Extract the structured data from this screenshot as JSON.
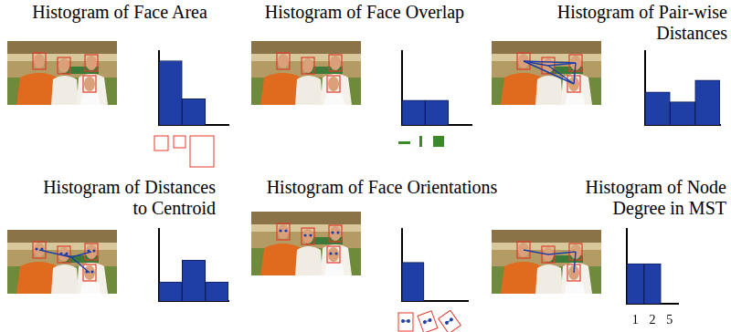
{
  "chart_data": [
    {
      "type": "bar",
      "title": [
        "Histogram of Face Area"
      ],
      "categories": [
        null,
        null,
        null
      ],
      "values": [
        86,
        35,
        0
      ],
      "color": "#1f3fa6",
      "ylim": [
        0,
        100
      ],
      "tick_labels": false,
      "grid": false
    },
    {
      "type": "bar",
      "title": [
        "Histogram of Face Overlap"
      ],
      "categories": [
        null,
        null,
        null
      ],
      "values": [
        33,
        33,
        0
      ],
      "color": "#1f3fa6",
      "ylim": [
        0,
        100
      ],
      "tick_labels": false,
      "grid": false
    },
    {
      "type": "bar",
      "title": [
        "Histogram of Pair-wise",
        "Distances"
      ],
      "categories": [
        null,
        null,
        null
      ],
      "values": [
        44,
        31,
        60
      ],
      "color": "#1f3fa6",
      "ylim": [
        0,
        100
      ],
      "tick_labels": false,
      "grid": false
    },
    {
      "type": "bar",
      "title": [
        "Histogram of Distances",
        "to Centroid"
      ],
      "categories": [
        null,
        null,
        null
      ],
      "values": [
        26,
        56,
        26
      ],
      "color": "#1f3fa6",
      "ylim": [
        0,
        100
      ],
      "tick_labels": false,
      "grid": false
    },
    {
      "type": "bar",
      "title": [
        "Histogram of Face Orientations"
      ],
      "categories": [
        null,
        null,
        null
      ],
      "values": [
        53,
        0,
        0
      ],
      "color": "#1f3fa6",
      "ylim": [
        0,
        100
      ],
      "tick_labels": false,
      "grid": false
    },
    {
      "type": "bar",
      "title": [
        "Histogram of Node",
        "Degree in MST"
      ],
      "categories": [
        "1",
        "2",
        "5"
      ],
      "values": [
        53,
        53,
        0
      ],
      "color": "#1f3fa6",
      "ylim": [
        0,
        100
      ],
      "tick_labels": "x",
      "grid": false
    }
  ]
}
